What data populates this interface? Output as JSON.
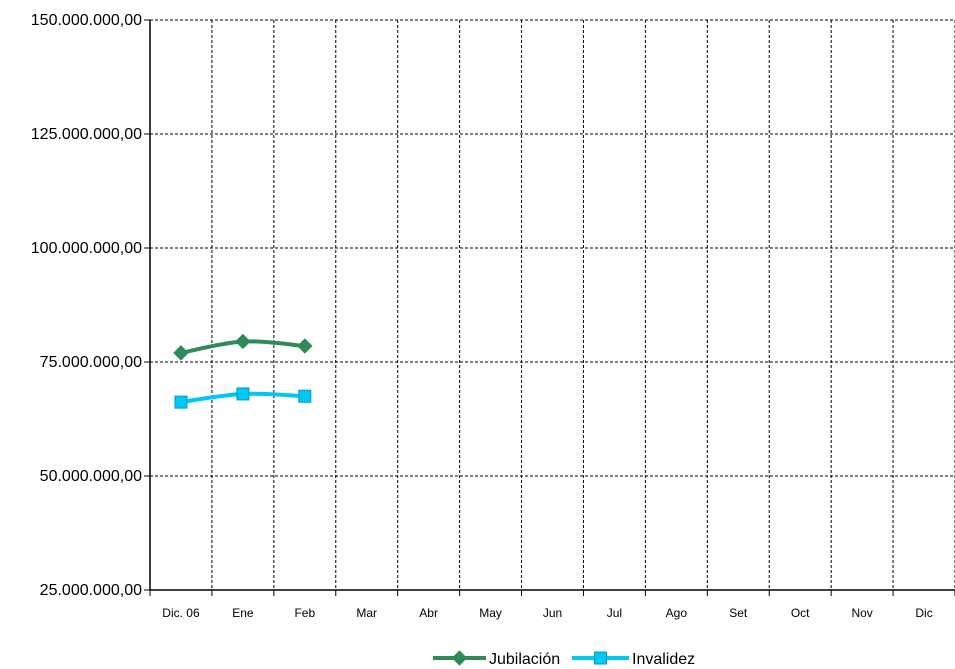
{
  "chart_data": {
    "type": "line",
    "categories": [
      "Dic. 06",
      "Ene",
      "Feb",
      "Mar",
      "Abr",
      "May",
      "Jun",
      "Jul",
      "Ago",
      "Set",
      "Oct",
      "Nov",
      "Dic"
    ],
    "y_ticks": [
      "25.000.000,00",
      "50.000.000,00",
      "75.000.000,00",
      "100.000.000,00",
      "125.000.000,00",
      "150.000.000,00"
    ],
    "ylim": [
      25000000,
      150000000
    ],
    "grid": true,
    "legend_position": "bottom-center",
    "series": [
      {
        "name": "Jubilación",
        "color": "#2e8b57",
        "marker": "diamond",
        "values": [
          77000000,
          79500000,
          78500000,
          null,
          null,
          null,
          null,
          null,
          null,
          null,
          null,
          null,
          null
        ]
      },
      {
        "name": "Invalidez",
        "color": "#00c8f0",
        "marker": "square",
        "values": [
          66200000,
          68000000,
          67500000,
          null,
          null,
          null,
          null,
          null,
          null,
          null,
          null,
          null,
          null
        ]
      }
    ]
  }
}
